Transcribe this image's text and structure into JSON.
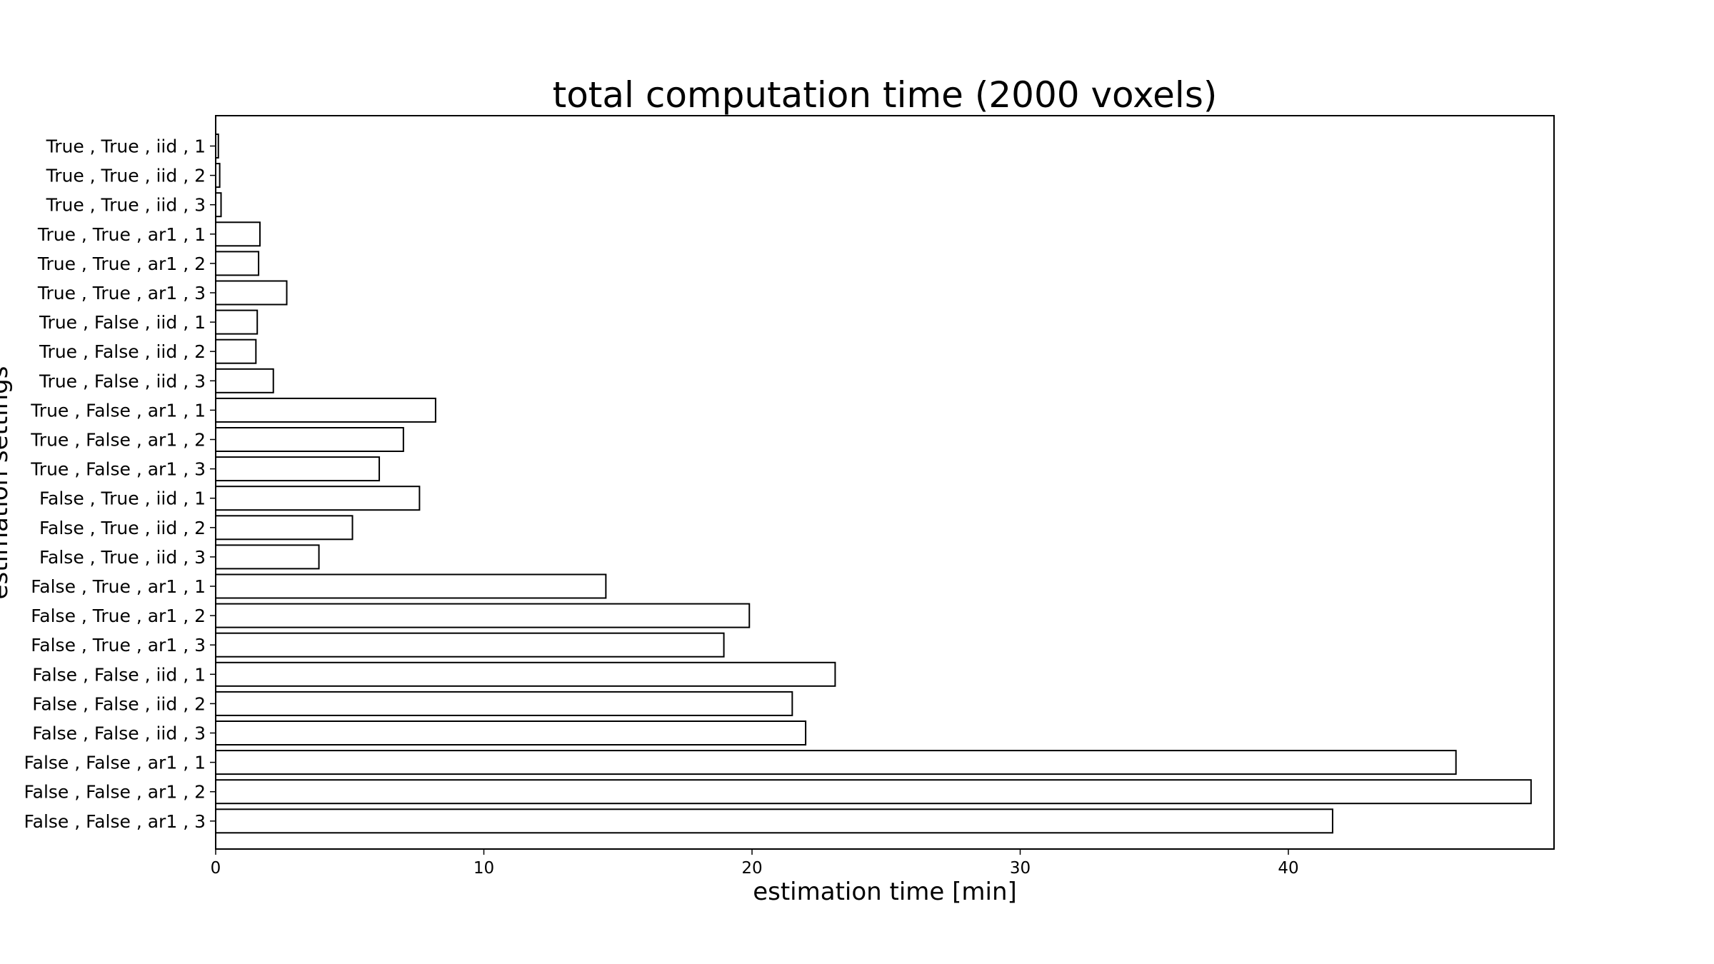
{
  "chart_data": {
    "type": "bar",
    "orientation": "horizontal",
    "title": "total computation time (2000 voxels)",
    "xlabel": "estimation time [min]",
    "ylabel": "estimation settings",
    "xlim": [
      0,
      50
    ],
    "xticks": [
      0,
      10,
      20,
      30,
      40
    ],
    "grid": false,
    "bar_fill": "#ffffff",
    "bar_edge": "#000000",
    "categories": [
      "True , True , iid , 1",
      "True , True , iid , 2",
      "True , True , iid , 3",
      "True , True , ar1 , 1",
      "True , True , ar1 , 2",
      "True , True , ar1 , 3",
      "True , False , iid , 1",
      "True , False , iid , 2",
      "True , False , iid , 3",
      "True , False , ar1 , 1",
      "True , False , ar1 , 2",
      "True , False , ar1 , 3",
      "False , True , iid , 1",
      "False , True , iid , 2",
      "False , True , iid , 3",
      "False , True , ar1 , 1",
      "False , True , ar1 , 2",
      "False , True , ar1 , 3",
      "False , False , iid , 1",
      "False , False , iid , 2",
      "False , False , iid , 3",
      "False , False , ar1 , 1",
      "False , False , ar1 , 2",
      "False , False , ar1 , 3"
    ],
    "values": [
      0.1,
      0.15,
      0.2,
      1.65,
      1.6,
      2.65,
      1.55,
      1.5,
      2.15,
      8.2,
      7.0,
      6.1,
      7.6,
      5.1,
      3.85,
      14.55,
      19.9,
      18.95,
      23.1,
      21.5,
      22.0,
      46.25,
      49.05,
      41.65
    ]
  }
}
